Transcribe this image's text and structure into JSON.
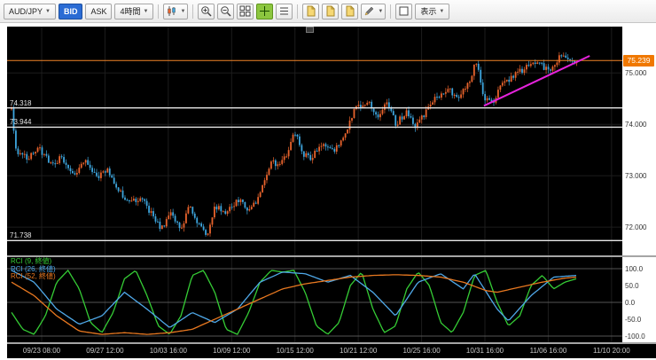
{
  "toolbar": {
    "pair_select": {
      "value": "AUD/JPY"
    },
    "bid_label": "BID",
    "ask_label": "ASK",
    "timeframe_select": {
      "value": "4時間"
    },
    "display_label": "表示"
  },
  "colors": {
    "candle_up": "#e8632c",
    "candle_down": "#3da5dd",
    "current_price_line": "#f08428",
    "trend_line": "#e623dc",
    "hline": "#e8e8e8",
    "grid": "#1d1d1d",
    "rci_grid": "#555555",
    "badge_bg": "#f07800",
    "bid_button": "#2a6bd4"
  },
  "chart_data": {
    "type": "candlestick",
    "pair": "AUD/JPY",
    "timeframe": "4時間",
    "quote_mode": "BID",
    "current_price": "75.239",
    "price_range": [
      71.45,
      75.9
    ],
    "price_axis_labels": [
      {
        "label": "75.000",
        "price": 75.0
      },
      {
        "label": "74.000",
        "price": 74.0
      },
      {
        "label": "73.000",
        "price": 73.0
      },
      {
        "label": "72.000",
        "price": 72.0
      }
    ],
    "hlines": [
      {
        "label": "74.318",
        "price": 74.318
      },
      {
        "label": "73.944",
        "price": 73.944
      },
      {
        "label": "71.738",
        "price": 71.738
      }
    ],
    "trendline": {
      "t1": 0.775,
      "p1": 74.36,
      "t2": 0.947,
      "p2": 75.33
    },
    "x_labels": [
      "09/23 08:00",
      "09/27 12:00",
      "10/03 16:00",
      "10/09 12:00",
      "10/15 12:00",
      "10/21 12:00",
      "10/25 16:00",
      "10/31 16:00",
      "11/06 16:00",
      "11/10 20:00"
    ],
    "candles": {
      "count": 260,
      "noise": 0.06,
      "path": [
        [
          0,
          74.28
        ],
        [
          0.008,
          73.5
        ],
        [
          0.03,
          73.35
        ],
        [
          0.05,
          73.52
        ],
        [
          0.07,
          73.2
        ],
        [
          0.09,
          73.36
        ],
        [
          0.11,
          73.0
        ],
        [
          0.13,
          73.28
        ],
        [
          0.15,
          72.95
        ],
        [
          0.17,
          73.15
        ],
        [
          0.19,
          72.7
        ],
        [
          0.21,
          72.45
        ],
        [
          0.23,
          72.6
        ],
        [
          0.25,
          72.2
        ],
        [
          0.265,
          71.95
        ],
        [
          0.28,
          72.28
        ],
        [
          0.3,
          71.95
        ],
        [
          0.315,
          72.4
        ],
        [
          0.33,
          72.1
        ],
        [
          0.345,
          71.82
        ],
        [
          0.36,
          72.42
        ],
        [
          0.38,
          72.25
        ],
        [
          0.4,
          72.55
        ],
        [
          0.42,
          72.3
        ],
        [
          0.44,
          72.62
        ],
        [
          0.46,
          73.3
        ],
        [
          0.475,
          73.18
        ],
        [
          0.49,
          73.5
        ],
        [
          0.5,
          73.9
        ],
        [
          0.515,
          73.4
        ],
        [
          0.53,
          73.35
        ],
        [
          0.55,
          73.62
        ],
        [
          0.57,
          73.45
        ],
        [
          0.59,
          73.82
        ],
        [
          0.61,
          74.35
        ],
        [
          0.63,
          74.45
        ],
        [
          0.65,
          74.15
        ],
        [
          0.665,
          74.45
        ],
        [
          0.68,
          74.0
        ],
        [
          0.7,
          74.25
        ],
        [
          0.715,
          73.95
        ],
        [
          0.73,
          74.2
        ],
        [
          0.75,
          74.5
        ],
        [
          0.77,
          74.68
        ],
        [
          0.79,
          74.55
        ],
        [
          0.81,
          74.85
        ],
        [
          0.823,
          75.25
        ],
        [
          0.835,
          74.55
        ],
        [
          0.85,
          74.4
        ],
        [
          0.87,
          74.8
        ],
        [
          0.89,
          74.95
        ],
        [
          0.91,
          75.1
        ],
        [
          0.93,
          75.2
        ],
        [
          0.95,
          75.05
        ],
        [
          0.97,
          75.3
        ],
        [
          1,
          75.24
        ]
      ]
    },
    "rci": {
      "scale_labels": [
        "100.0",
        "50.0",
        "0.0",
        "-50.0",
        "-100.0"
      ],
      "scale_values": [
        100,
        50,
        0,
        -50,
        -100
      ],
      "legend": [
        {
          "label": "RCI (9, 終値)",
          "color": "#35cc35"
        },
        {
          "label": "RCI (26, 終値)",
          "color": "#4fa8e8"
        },
        {
          "label": "RCI (52, 終値)",
          "color": "#e87820"
        }
      ],
      "series": [
        {
          "name": "RCI(9)",
          "color": "#35cc35",
          "points": [
            [
              0,
              -30
            ],
            [
              0.02,
              -80
            ],
            [
              0.04,
              -95
            ],
            [
              0.06,
              -40
            ],
            [
              0.08,
              60
            ],
            [
              0.1,
              95
            ],
            [
              0.12,
              40
            ],
            [
              0.14,
              -60
            ],
            [
              0.16,
              -90
            ],
            [
              0.18,
              -30
            ],
            [
              0.2,
              70
            ],
            [
              0.22,
              95
            ],
            [
              0.24,
              20
            ],
            [
              0.26,
              -70
            ],
            [
              0.28,
              -95
            ],
            [
              0.3,
              -40
            ],
            [
              0.32,
              80
            ],
            [
              0.34,
              95
            ],
            [
              0.36,
              30
            ],
            [
              0.38,
              -80
            ],
            [
              0.4,
              -95
            ],
            [
              0.42,
              -30
            ],
            [
              0.44,
              60
            ],
            [
              0.46,
              95
            ],
            [
              0.48,
              90
            ],
            [
              0.5,
              95
            ],
            [
              0.52,
              30
            ],
            [
              0.54,
              -70
            ],
            [
              0.56,
              -95
            ],
            [
              0.58,
              -60
            ],
            [
              0.6,
              50
            ],
            [
              0.62,
              90
            ],
            [
              0.64,
              -20
            ],
            [
              0.66,
              -90
            ],
            [
              0.68,
              -70
            ],
            [
              0.7,
              40
            ],
            [
              0.72,
              90
            ],
            [
              0.74,
              50
            ],
            [
              0.76,
              -60
            ],
            [
              0.78,
              -90
            ],
            [
              0.8,
              -30
            ],
            [
              0.82,
              80
            ],
            [
              0.84,
              95
            ],
            [
              0.86,
              0
            ],
            [
              0.88,
              -70
            ],
            [
              0.9,
              -40
            ],
            [
              0.92,
              50
            ],
            [
              0.94,
              80
            ],
            [
              0.96,
              40
            ],
            [
              0.98,
              60
            ],
            [
              1,
              70
            ]
          ]
        },
        {
          "name": "RCI(26)",
          "color": "#4fa8e8",
          "points": [
            [
              0,
              95
            ],
            [
              0.04,
              60
            ],
            [
              0.08,
              -20
            ],
            [
              0.12,
              -65
            ],
            [
              0.16,
              -40
            ],
            [
              0.2,
              30
            ],
            [
              0.24,
              -20
            ],
            [
              0.28,
              -75
            ],
            [
              0.32,
              -30
            ],
            [
              0.36,
              -60
            ],
            [
              0.4,
              -20
            ],
            [
              0.44,
              60
            ],
            [
              0.48,
              90
            ],
            [
              0.52,
              85
            ],
            [
              0.56,
              60
            ],
            [
              0.6,
              80
            ],
            [
              0.64,
              30
            ],
            [
              0.68,
              -40
            ],
            [
              0.72,
              60
            ],
            [
              0.76,
              85
            ],
            [
              0.8,
              40
            ],
            [
              0.82,
              85
            ],
            [
              0.86,
              -20
            ],
            [
              0.88,
              -55
            ],
            [
              0.92,
              20
            ],
            [
              0.96,
              75
            ],
            [
              1,
              80
            ]
          ]
        },
        {
          "name": "RCI(52)",
          "color": "#e87820",
          "points": [
            [
              0,
              60
            ],
            [
              0.04,
              20
            ],
            [
              0.08,
              -40
            ],
            [
              0.12,
              -85
            ],
            [
              0.16,
              -95
            ],
            [
              0.2,
              -90
            ],
            [
              0.24,
              -95
            ],
            [
              0.28,
              -90
            ],
            [
              0.32,
              -80
            ],
            [
              0.36,
              -50
            ],
            [
              0.4,
              -20
            ],
            [
              0.44,
              10
            ],
            [
              0.48,
              40
            ],
            [
              0.52,
              55
            ],
            [
              0.56,
              65
            ],
            [
              0.6,
              75
            ],
            [
              0.64,
              80
            ],
            [
              0.68,
              82
            ],
            [
              0.72,
              80
            ],
            [
              0.76,
              75
            ],
            [
              0.8,
              60
            ],
            [
              0.84,
              35
            ],
            [
              0.86,
              30
            ],
            [
              0.9,
              45
            ],
            [
              0.94,
              60
            ],
            [
              0.98,
              72
            ],
            [
              1,
              75
            ]
          ]
        }
      ]
    }
  }
}
